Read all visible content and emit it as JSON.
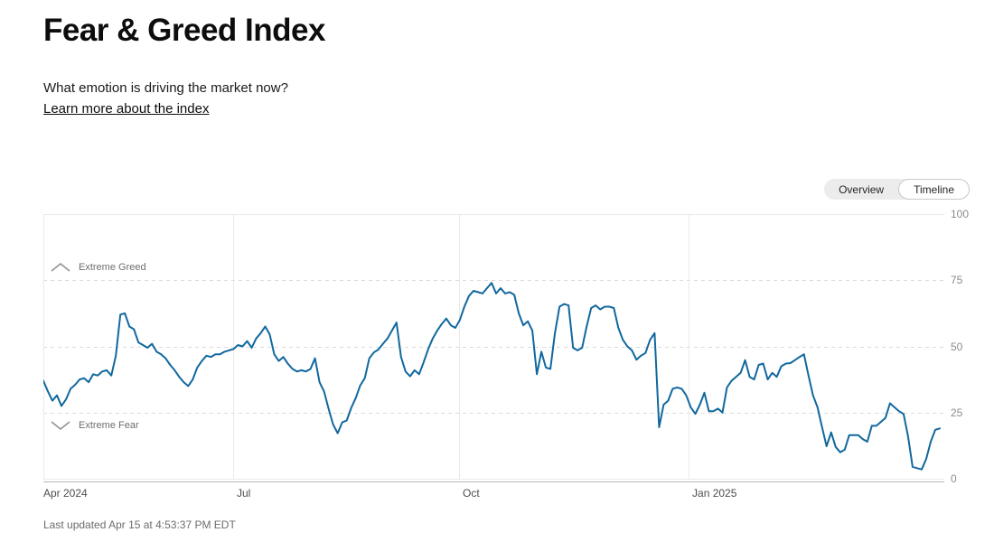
{
  "page": {
    "title": "Fear & Greed Index",
    "subtitle": "What emotion is driving the market now?",
    "learn_more": "Learn more about the index",
    "last_updated": "Last updated Apr 15 at 4:53:37 PM EDT"
  },
  "view_toggle": {
    "options": [
      "Overview",
      "Timeline"
    ],
    "selected": "Timeline"
  },
  "zones": {
    "greed_label": "Extreme Greed",
    "fear_label": "Extreme Fear"
  },
  "chart_data": {
    "type": "line",
    "series_name": "Fear & Greed Index",
    "title": "Fear & Greed Index over time",
    "ylim": [
      0,
      100
    ],
    "y_ticks": [
      0,
      25,
      50,
      75,
      100
    ],
    "y_dashed_ticks": [
      25,
      50,
      75
    ],
    "zone_thresholds": {
      "extreme_greed_above": 75,
      "extreme_fear_below": 25
    },
    "x_ticks": [
      {
        "label": "Apr 2024",
        "pos": 0.0
      },
      {
        "label": "Jul",
        "pos": 0.2117
      },
      {
        "label": "Oct",
        "pos": 0.4637
      },
      {
        "label": "Jan 2025",
        "pos": 0.7198
      }
    ],
    "grid": true,
    "legend_position": "none",
    "values": [
      37,
      33,
      29.5,
      31.5,
      27.5,
      30,
      34,
      35.5,
      37.5,
      38,
      36.5,
      39.5,
      39,
      40.5,
      41,
      39,
      46.5,
      62,
      62.5,
      57.5,
      56.5,
      51.5,
      50.5,
      49.5,
      51,
      48,
      47,
      45.5,
      43,
      41,
      38.5,
      36.5,
      35,
      37.5,
      42,
      44.5,
      46.5,
      46,
      47,
      47,
      48,
      48.5,
      49,
      50.5,
      50,
      52,
      49.5,
      53,
      55,
      57.5,
      54.5,
      47,
      44.5,
      46,
      43.5,
      41.5,
      40.5,
      41,
      40.5,
      41.5,
      45.5,
      36.5,
      33,
      26.5,
      20.5,
      17.2,
      21.3,
      22,
      26.8,
      30.5,
      35.3,
      38,
      45.5,
      47.7,
      48.8,
      51,
      53,
      56,
      59,
      46,
      40.5,
      38.7,
      41,
      39.5,
      44,
      49,
      53,
      56,
      58.5,
      60.5,
      58,
      57,
      60,
      65,
      69,
      71,
      70.5,
      70,
      72,
      74,
      70,
      72,
      70,
      70.5,
      69.5,
      62.5,
      58,
      59.5,
      56,
      39.5,
      48,
      42,
      41.5,
      55,
      65,
      66,
      65.5,
      49.5,
      48.5,
      49.5,
      57.5,
      64.5,
      65.5,
      64,
      65,
      65,
      64.5,
      57,
      52.5,
      50,
      48.5,
      45,
      46.5,
      47.5,
      52.5,
      55,
      19.5,
      28,
      29.5,
      34,
      34.5,
      34,
      31.5,
      27,
      24.5,
      28,
      32.5,
      25.5,
      25.5,
      26.5,
      25,
      34.5,
      37,
      38.5,
      40,
      44.8,
      38.5,
      37.5,
      43,
      43.5,
      37.5,
      40,
      38.5,
      42.5,
      43.5,
      43.7,
      44.8,
      46,
      47,
      39,
      31.5,
      27,
      19.5,
      12.3,
      17.5,
      12,
      10,
      11,
      16.5,
      16.5,
      16.5,
      15,
      14,
      20,
      20,
      21.5,
      23,
      28.5,
      27,
      25.5,
      24.5,
      16,
      4.5,
      4,
      3.5,
      7.5,
      14,
      18.5,
      19
    ],
    "colors": {
      "line": "#11689e",
      "grid_solid": "#e9e9e9",
      "grid_dashed": "#dcdcdc",
      "axis": "#b8b8b8",
      "y_label": "#8c8c8c",
      "x_label": "#4d4d4d",
      "zone_icon": "#8f8f8f"
    }
  }
}
